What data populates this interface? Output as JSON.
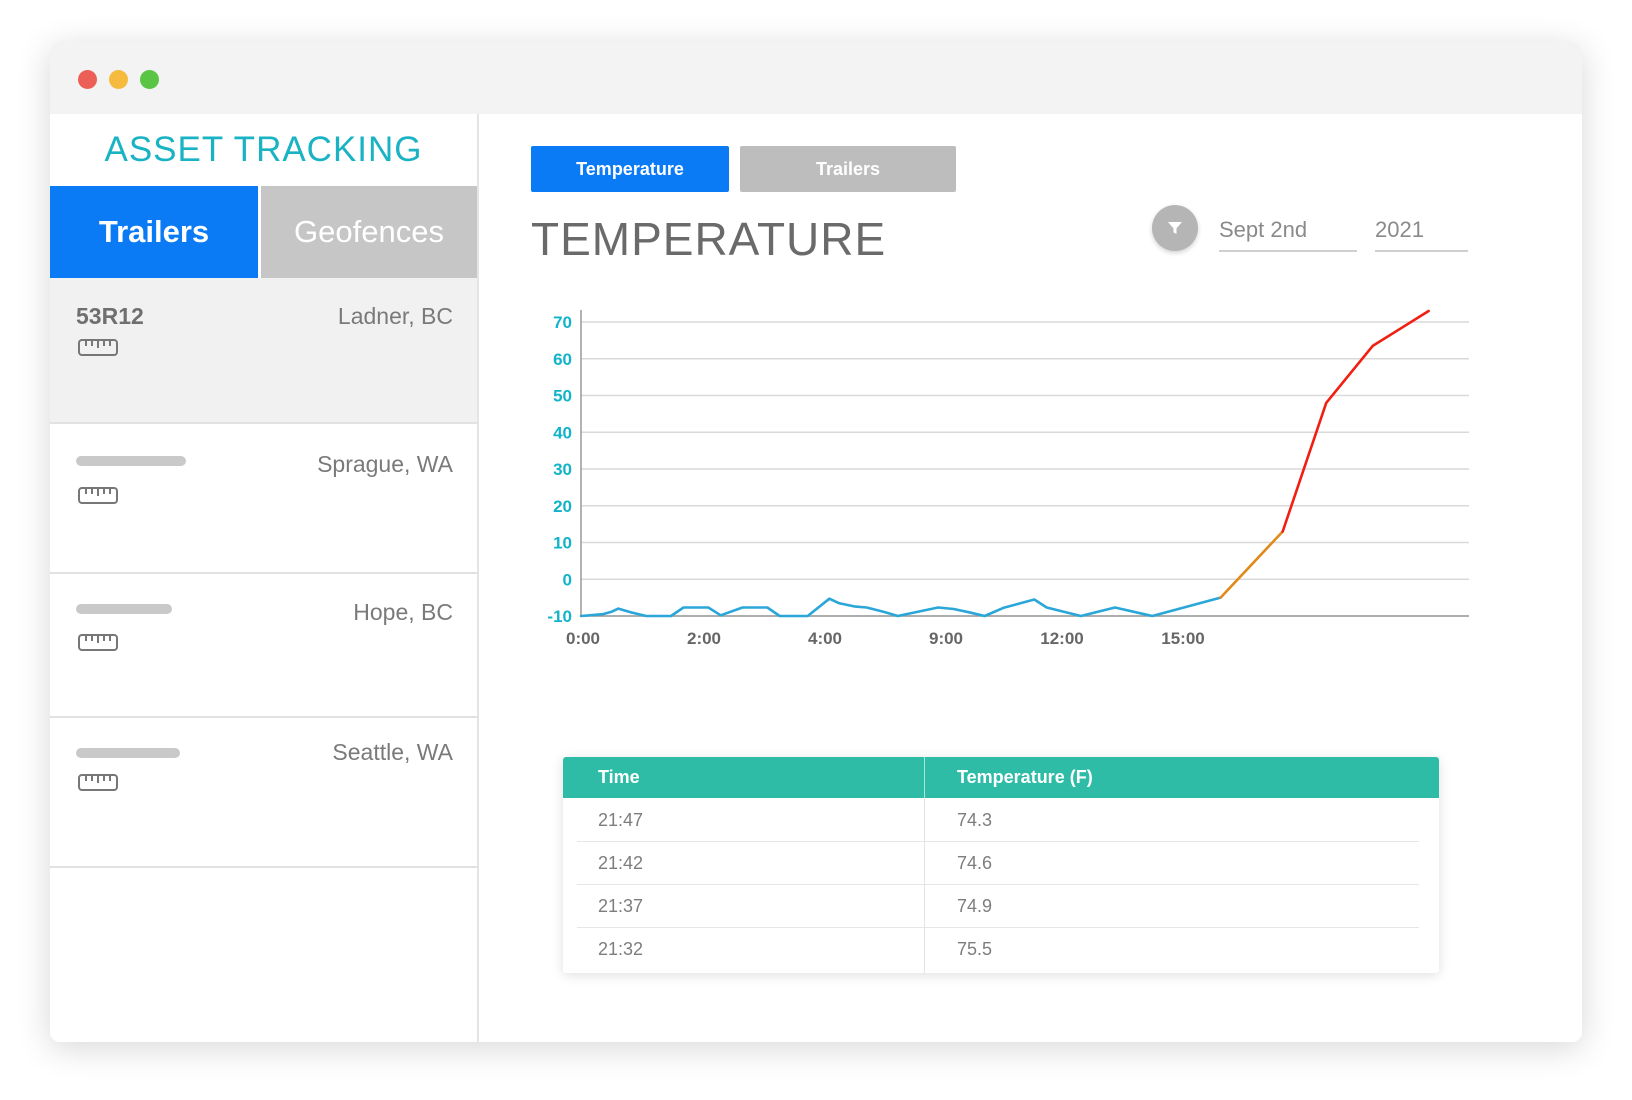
{
  "sidebar": {
    "title": "ASSET TRACKING",
    "tabs": [
      {
        "label": "Trailers",
        "active": true
      },
      {
        "label": "Geofences",
        "active": false
      }
    ],
    "assets": [
      {
        "id": "53R12",
        "location": "Ladner, BC",
        "selected": true
      },
      {
        "id": "",
        "location": "Sprague, WA",
        "selected": false
      },
      {
        "id": "",
        "location": "Hope, BC",
        "selected": false
      },
      {
        "id": "",
        "location": "Seattle, WA",
        "selected": false
      }
    ],
    "asset_icon": "ruler-icon"
  },
  "main": {
    "tabs": [
      {
        "label": "Temperature",
        "active": true
      },
      {
        "label": "Trailers",
        "active": false
      }
    ],
    "title": "TEMPERATURE",
    "filter_icon": "filter-icon",
    "date": {
      "day": "Sept 2nd",
      "year": "2021"
    }
  },
  "colors": {
    "primary": "#0a7bf5",
    "brand": "#1ab3c4",
    "table_header": "#2ebca6",
    "line_normal": "#2aa6d8",
    "line_warm": "#e08a1a",
    "line_hot": "#f01f12"
  },
  "chart_data": {
    "type": "line",
    "title": "",
    "xlabel": "",
    "ylabel": "",
    "ylim": [
      -10,
      73
    ],
    "y_ticks": [
      "70",
      "60",
      "50",
      "40",
      "30",
      "20",
      "10",
      "0",
      "-10"
    ],
    "x_ticks": [
      "0:00",
      "2:00",
      "4:00",
      "9:00",
      "12:00",
      "15:00"
    ],
    "grid": true,
    "series": [
      {
        "color": "#2aa6d8",
        "points": [
          [
            0.0,
            -10
          ],
          [
            0.7,
            -9.5
          ],
          [
            1.0,
            -8.8
          ],
          [
            1.2,
            -8
          ],
          [
            1.6,
            -9
          ],
          [
            2.1,
            -10
          ],
          [
            2.9,
            -10
          ],
          [
            3.3,
            -7.7
          ],
          [
            4.1,
            -7.7
          ],
          [
            4.5,
            -9.8
          ],
          [
            5.2,
            -7.7
          ],
          [
            6.0,
            -7.7
          ],
          [
            6.4,
            -10
          ],
          [
            7.3,
            -10
          ],
          [
            8.0,
            -5.3
          ],
          [
            8.3,
            -6.5
          ],
          [
            8.8,
            -7.4
          ],
          [
            9.2,
            -7.7
          ],
          [
            9.8,
            -9
          ],
          [
            10.2,
            -10
          ],
          [
            11.5,
            -7.7
          ],
          [
            12.0,
            -8.1
          ],
          [
            12.5,
            -9
          ],
          [
            13.0,
            -10
          ],
          [
            13.6,
            -7.8
          ],
          [
            14.6,
            -5.5
          ],
          [
            15.0,
            -7.7
          ],
          [
            16.1,
            -10
          ],
          [
            17.2,
            -7.7
          ],
          [
            18.4,
            -10
          ],
          [
            20.6,
            -5
          ]
        ]
      },
      {
        "color": "#e08a1a",
        "points": [
          [
            20.6,
            -5
          ],
          [
            22.6,
            13
          ]
        ]
      },
      {
        "color": "#f01f12",
        "points": [
          [
            22.6,
            13
          ],
          [
            24.0,
            48
          ],
          [
            25.5,
            63.5
          ],
          [
            27.3,
            73
          ]
        ]
      }
    ]
  },
  "table": {
    "headers": [
      "Time",
      "Temperature (F)"
    ],
    "rows": [
      [
        "21:47",
        "74.3"
      ],
      [
        "21:42",
        "74.6"
      ],
      [
        "21:37",
        "74.9"
      ],
      [
        "21:32",
        "75.5"
      ]
    ]
  }
}
